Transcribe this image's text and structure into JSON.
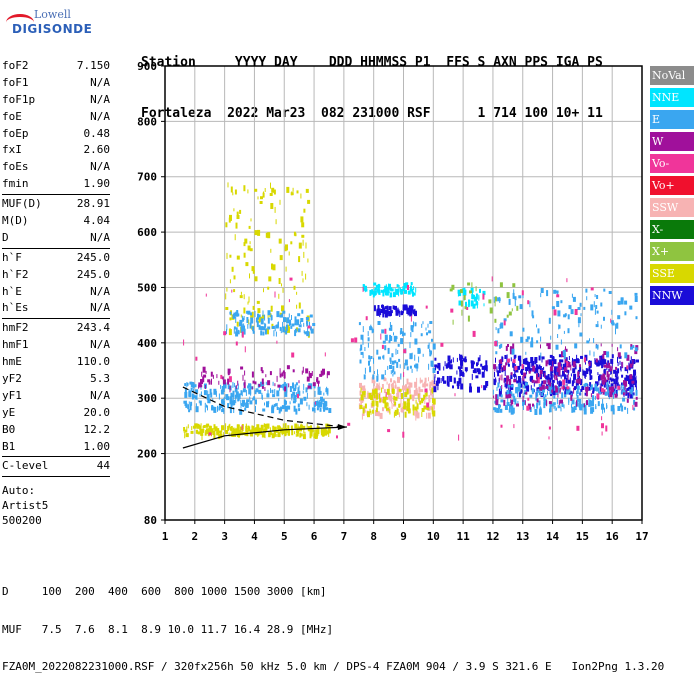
{
  "logo": {
    "line1": "Lowell",
    "line2": "DIGISONDE"
  },
  "header": {
    "row1": "Station     YYYY DAY    DDD HHMMSS P1  FFS S AXN PPS IGA PS",
    "row2": "Fortaleza  2022 Mar23  082 231000 RSF      1 714 100 10+ 11"
  },
  "params": {
    "block1": [
      {
        "name": "foF2",
        "value": "7.150"
      },
      {
        "name": "foF1",
        "value": "N/A"
      },
      {
        "name": "foF1p",
        "value": "N/A"
      },
      {
        "name": "foE",
        "value": "N/A"
      },
      {
        "name": "foEp",
        "value": "0.48"
      },
      {
        "name": "fxI",
        "value": "2.60"
      },
      {
        "name": "foEs",
        "value": "N/A"
      },
      {
        "name": "fmin",
        "value": "1.90"
      }
    ],
    "block2": [
      {
        "name": "MUF(D)",
        "value": "28.91"
      },
      {
        "name": "M(D)",
        "value": "4.04"
      },
      {
        "name": "D",
        "value": "N/A"
      }
    ],
    "block3": [
      {
        "name": "h`F",
        "value": "245.0"
      },
      {
        "name": "h`F2",
        "value": "245.0"
      },
      {
        "name": "h`E",
        "value": "N/A"
      },
      {
        "name": "h`Es",
        "value": "N/A"
      }
    ],
    "block4": [
      {
        "name": "hmF2",
        "value": "243.4"
      },
      {
        "name": "hmF1",
        "value": "N/A"
      },
      {
        "name": "hmE",
        "value": "110.0"
      },
      {
        "name": "yF2",
        "value": "5.3"
      },
      {
        "name": "yF1",
        "value": "N/A"
      },
      {
        "name": "yE",
        "value": "20.0"
      },
      {
        "name": "B0",
        "value": "12.2"
      },
      {
        "name": "B1",
        "value": "1.00"
      }
    ],
    "block5": [
      {
        "name": "C-level",
        "value": "44"
      }
    ],
    "auto": [
      "Auto:",
      "Artist5",
      "500200"
    ]
  },
  "legend": [
    {
      "label": "NoVal",
      "color": "#8c8c8c"
    },
    {
      "label": "NNE",
      "color": "#00e5ff"
    },
    {
      "label": "E",
      "color": "#3aa6f0"
    },
    {
      "label": "W",
      "color": "#a0109b"
    },
    {
      "label": "Vo-",
      "color": "#f0359a"
    },
    {
      "label": "Vo+",
      "color": "#f0102d"
    },
    {
      "label": "SSW",
      "color": "#f7b3b3"
    },
    {
      "label": "X-",
      "color": "#0a7a0a"
    },
    {
      "label": "X+",
      "color": "#8fc440"
    },
    {
      "label": "SSE",
      "color": "#d8d800"
    },
    {
      "label": "NNW",
      "color": "#1a0cd8"
    }
  ],
  "chart_data": {
    "type": "scatter",
    "xlabel": "",
    "ylabel": "",
    "xlim": [
      1,
      17
    ],
    "ylim": [
      80,
      900
    ],
    "x_ticks": [
      1,
      2,
      3,
      4,
      5,
      6,
      7,
      8,
      9,
      10,
      11,
      12,
      13,
      14,
      15,
      16,
      17
    ],
    "y_ticks": [
      80,
      200,
      300,
      400,
      500,
      600,
      700,
      800,
      900
    ],
    "grid": true,
    "echo_clusters": [
      {
        "series": "SSE",
        "freq_range": [
          1.6,
          6.5
        ],
        "height_range": [
          235,
          255
        ],
        "density": 220
      },
      {
        "series": "SSE",
        "freq_range": [
          3.0,
          5.8
        ],
        "height_range": [
          420,
          690
        ],
        "density": 140
      },
      {
        "series": "E",
        "freq_range": [
          1.6,
          6.5
        ],
        "height_range": [
          280,
          330
        ],
        "density": 260
      },
      {
        "series": "E",
        "freq_range": [
          3.0,
          6.0
        ],
        "height_range": [
          420,
          460
        ],
        "density": 110
      },
      {
        "series": "W",
        "freq_range": [
          2.0,
          6.5
        ],
        "height_range": [
          320,
          360
        ],
        "density": 80
      },
      {
        "series": "NNE",
        "freq_range": [
          7.6,
          9.4
        ],
        "height_range": [
          490,
          510
        ],
        "density": 70
      },
      {
        "series": "NNW",
        "freq_range": [
          8.0,
          9.4
        ],
        "height_range": [
          455,
          470
        ],
        "density": 70
      },
      {
        "series": "SSW",
        "freq_range": [
          7.5,
          10.0
        ],
        "height_range": [
          270,
          340
        ],
        "density": 160
      },
      {
        "series": "SSE",
        "freq_range": [
          7.5,
          10.0
        ],
        "height_range": [
          275,
          320
        ],
        "density": 90
      },
      {
        "series": "E",
        "freq_range": [
          7.5,
          10.0
        ],
        "height_range": [
          340,
          440
        ],
        "density": 120
      },
      {
        "series": "NNW",
        "freq_range": [
          10.0,
          11.8
        ],
        "height_range": [
          320,
          380
        ],
        "density": 90
      },
      {
        "series": "NNE",
        "freq_range": [
          10.8,
          11.8
        ],
        "height_range": [
          470,
          500
        ],
        "density": 35
      },
      {
        "series": "NNW",
        "freq_range": [
          12.0,
          16.8
        ],
        "height_range": [
          310,
          380
        ],
        "density": 420
      },
      {
        "series": "E",
        "freq_range": [
          12.0,
          16.8
        ],
        "height_range": [
          280,
          330
        ],
        "density": 200
      },
      {
        "series": "W",
        "freq_range": [
          12.0,
          16.8
        ],
        "height_range": [
          290,
          400
        ],
        "density": 160
      },
      {
        "series": "E",
        "freq_range": [
          12.0,
          16.8
        ],
        "height_range": [
          380,
          500
        ],
        "density": 120
      },
      {
        "series": "Vo-",
        "freq_range": [
          1.6,
          16.8
        ],
        "height_range": [
          230,
          520
        ],
        "density": 90
      },
      {
        "series": "X+",
        "freq_range": [
          10.5,
          12.8
        ],
        "height_range": [
          440,
          510
        ],
        "density": 25
      }
    ],
    "trace_lines": [
      {
        "name": "dashed-upper",
        "style": "dashed",
        "points": [
          [
            1.6,
            320
          ],
          [
            3,
            285
          ],
          [
            5,
            260
          ],
          [
            7,
            248
          ]
        ]
      },
      {
        "name": "solid-lower",
        "style": "solid",
        "points": [
          [
            1.6,
            210
          ],
          [
            3,
            232
          ],
          [
            5,
            243
          ],
          [
            7.1,
            248
          ]
        ]
      }
    ]
  },
  "footer": {
    "line1": "D     100  200  400  600  800 1000 1500 3000 [km]",
    "line2": "MUF   7.5  7.6  8.1  8.9 10.0 11.7 16.4 28.9 [MHz]",
    "line3": "FZA0M_2022082231000.RSF / 320fx256h 50 kHz 5.0 km / DPS-4 FZA0M 904 / 3.9 S 321.6 E   Ion2Png 1.3.20"
  }
}
